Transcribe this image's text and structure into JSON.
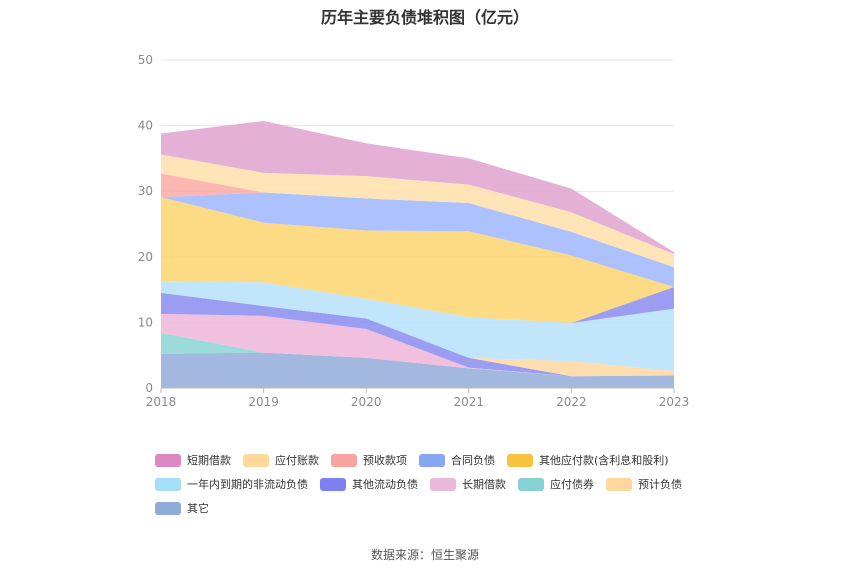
{
  "chart_data": {
    "type": "area",
    "title": "历年主要负债堆积图（亿元）",
    "x": [
      "2018",
      "2019",
      "2020",
      "2021",
      "2022",
      "2023"
    ],
    "ylim": [
      0,
      50
    ],
    "yticks": [
      "0",
      "10",
      "20",
      "30",
      "40",
      "50"
    ],
    "stacked": true,
    "grid": true,
    "legend_position": "bottom",
    "series": [
      {
        "name": "其它",
        "color": "#93acd9",
        "values": [
          5.2,
          5.4,
          4.6,
          3.0,
          1.8,
          1.9
        ]
      },
      {
        "name": "应付债券",
        "color": "#8ad5d5",
        "values": [
          3.2,
          0,
          0,
          0,
          0,
          0
        ]
      },
      {
        "name": "长期借款",
        "color": "#f0b5d9",
        "values": [
          2.9,
          5.6,
          4.4,
          0.1,
          0,
          0
        ]
      },
      {
        "name": "其他流动负债",
        "color": "#8a8cf0",
        "values": [
          3.2,
          1.5,
          1.6,
          1.5,
          0,
          0
        ]
      },
      {
        "name": "预计负债",
        "color": "#ffd7a0",
        "values": [
          0,
          0,
          0,
          0,
          2.3,
          0.7
        ]
      },
      {
        "name": "一年内到期的非流动负债",
        "color": "#b6e2fa",
        "values": [
          1.8,
          3.6,
          3.0,
          6.2,
          5.8,
          9.5
        ]
      },
      {
        "name": "其他流动负债",
        "color": "#8a8cf0",
        "values": [
          0,
          0,
          0,
          0,
          0,
          3.3
        ]
      },
      {
        "name": "其他应付款(含利息和股利)",
        "color": "#fdd46e",
        "values": [
          12.8,
          9.1,
          10.4,
          13.1,
          10.3,
          0
        ]
      },
      {
        "name": "合同负债",
        "color": "#a0b6ff",
        "values": [
          0,
          4.6,
          4.9,
          4.3,
          3.6,
          3.0
        ]
      },
      {
        "name": "预收款项",
        "color": "#fbaaa6",
        "values": [
          3.6,
          0,
          0,
          0,
          0,
          0
        ]
      },
      {
        "name": "应付账款",
        "color": "#ffdfab",
        "values": [
          2.9,
          3.0,
          3.4,
          2.8,
          3.0,
          2.0
        ]
      },
      {
        "name": "短期借款",
        "color": "#e0a2cf",
        "values": [
          3.2,
          7.9,
          5.0,
          4.0,
          3.6,
          0.3
        ]
      }
    ],
    "legend": [
      [
        {
          "label": "短期借款",
          "color": "#dd88c2"
        },
        {
          "label": "应付账款",
          "color": "#ffd89a"
        },
        {
          "label": "预收款项",
          "color": "#f8a39e"
        },
        {
          "label": "合同负债",
          "color": "#86a6f4"
        },
        {
          "label": "其他应付款(含利息和股利)",
          "color": "#f8c23f"
        }
      ],
      [
        {
          "label": "一年内到期的非流动负债",
          "color": "#a6ddf8"
        },
        {
          "label": "其他流动负债",
          "color": "#7f80ef"
        },
        {
          "label": "长期借款",
          "color": "#ecb8da"
        },
        {
          "label": "应付债券",
          "color": "#86d1d3"
        },
        {
          "label": "预计负债",
          "color": "#ffd79e"
        }
      ],
      [
        {
          "label": "其它",
          "color": "#8fabd9"
        }
      ]
    ]
  },
  "source": "数据来源：恒生聚源"
}
